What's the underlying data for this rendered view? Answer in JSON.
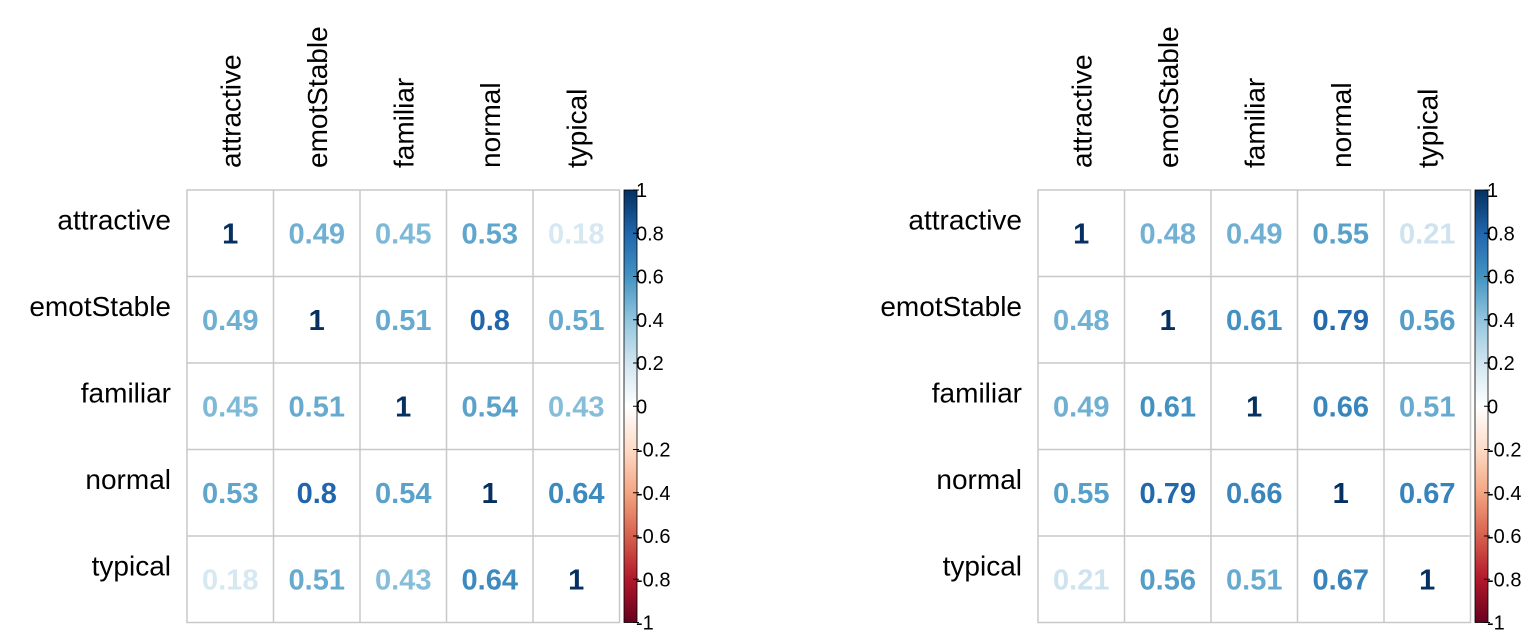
{
  "chart_data": [
    {
      "type": "heatmap",
      "variables": [
        "attractive",
        "emotStable",
        "familiar",
        "normal",
        "typical"
      ],
      "matrix": [
        [
          1,
          0.49,
          0.45,
          0.53,
          0.18
        ],
        [
          0.49,
          1,
          0.51,
          0.8,
          0.51
        ],
        [
          0.45,
          0.51,
          1,
          0.54,
          0.43
        ],
        [
          0.53,
          0.8,
          0.54,
          1,
          0.64
        ],
        [
          0.18,
          0.51,
          0.43,
          0.64,
          1
        ]
      ],
      "value_range": [
        -1,
        1
      ],
      "colorbar_ticks": [
        "1",
        "0.8",
        "0.6",
        "0.4",
        "0.2",
        "0",
        "-0.2",
        "-0.4",
        "-0.6",
        "-0.8",
        "-1"
      ],
      "legend": "colorbar-right"
    },
    {
      "type": "heatmap",
      "variables": [
        "attractive",
        "emotStable",
        "familiar",
        "normal",
        "typical"
      ],
      "matrix": [
        [
          1,
          0.48,
          0.49,
          0.55,
          0.21
        ],
        [
          0.48,
          1,
          0.61,
          0.79,
          0.56
        ],
        [
          0.49,
          0.61,
          1,
          0.66,
          0.51
        ],
        [
          0.55,
          0.79,
          0.66,
          1,
          0.67
        ],
        [
          0.21,
          0.56,
          0.51,
          0.67,
          1
        ]
      ],
      "value_range": [
        -1,
        1
      ],
      "colorbar_ticks": [
        "1",
        "0.8",
        "0.6",
        "0.4",
        "0.2",
        "0",
        "-0.2",
        "-0.4",
        "-0.6",
        "-0.8",
        "-1"
      ],
      "legend": "colorbar-right"
    }
  ],
  "colors": {
    "palette": [
      "#67001F",
      "#B2182B",
      "#D6604D",
      "#F4A582",
      "#FDDBC7",
      "#FFFFFF",
      "#D1E5F0",
      "#92C5DE",
      "#4393C3",
      "#2166AC",
      "#053061"
    ],
    "grid": "#c8c8c8",
    "label": "#000000"
  }
}
